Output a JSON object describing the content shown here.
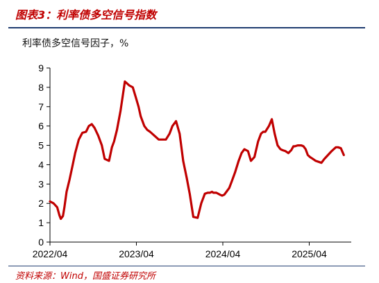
{
  "figure": {
    "label": "图表3：",
    "title": "利率债多空信号指数",
    "source": "资料来源：Wind，国盛证券研究所"
  },
  "colors": {
    "series": "#c00000",
    "rule": "#1f3b70"
  },
  "chart_data": {
    "type": "line",
    "title": "利率债多空信号因子，%",
    "xlabel": "",
    "ylabel": "",
    "ylim": [
      0,
      9
    ],
    "yticks": [
      "0",
      "1",
      "2",
      "3",
      "4",
      "5",
      "6",
      "7",
      "8",
      "9"
    ],
    "xticks": [
      "2022/04",
      "2023/04",
      "2024/04",
      "2025/04"
    ],
    "x_unit": "months since 2022/04",
    "grid": false,
    "legend": "none",
    "series": [
      {
        "name": "",
        "x": [
          0,
          0.5,
          1,
          1.3,
          1.5,
          1.8,
          2,
          2.3,
          2.7,
          3.1,
          3.5,
          4,
          4.5,
          5,
          5.4,
          5.8,
          6.2,
          6.7,
          7.2,
          7.6,
          8.2,
          8.6,
          8.9,
          9.3,
          9.8,
          10.4,
          10.7,
          11,
          11.5,
          11.9,
          12.3,
          12.6,
          13.1,
          13.5,
          13.9,
          14.5,
          15.1,
          15.5,
          16.1,
          16.6,
          17,
          17.5,
          18,
          18.5,
          19,
          19.4,
          19.9,
          20.5,
          21,
          21.5,
          21.9,
          22.2,
          22.5,
          22.7,
          23.1,
          23.6,
          23.9,
          24.2,
          24.5,
          24.9,
          25.3,
          25.7,
          26.2,
          26.6,
          27,
          27.5,
          27.9,
          28.4,
          28.9,
          29.3,
          29.6,
          29.9,
          30.4,
          30.8,
          31.2,
          31.6,
          32,
          32.3,
          32.7,
          33.1,
          33.5,
          33.8,
          34,
          34.4,
          34.9,
          35.2,
          35.5,
          35.8,
          36.1,
          36.5,
          36.9,
          37.3,
          37.7,
          38.1,
          38.6,
          39.1,
          39.4,
          39.7,
          40,
          40.4,
          40.8
        ],
        "y": [
          2.1,
          2.0,
          1.8,
          1.4,
          1.2,
          1.35,
          1.8,
          2.6,
          3.2,
          3.9,
          4.6,
          5.3,
          5.65,
          5.7,
          6.0,
          6.1,
          5.9,
          5.5,
          5.0,
          4.3,
          4.2,
          4.9,
          5.2,
          5.8,
          6.8,
          8.3,
          8.2,
          8.1,
          8.0,
          7.5,
          7.0,
          6.5,
          6.0,
          5.8,
          5.7,
          5.5,
          5.3,
          5.3,
          5.3,
          5.6,
          6.0,
          6.25,
          5.6,
          4.2,
          3.3,
          2.5,
          1.3,
          1.25,
          2.0,
          2.5,
          2.55,
          2.55,
          2.6,
          2.55,
          2.55,
          2.45,
          2.4,
          2.45,
          2.6,
          2.8,
          3.2,
          3.6,
          4.2,
          4.6,
          4.8,
          4.7,
          4.2,
          4.4,
          5.2,
          5.6,
          5.7,
          5.7,
          6.0,
          6.35,
          5.6,
          5.0,
          4.8,
          4.75,
          4.7,
          4.6,
          4.75,
          4.95,
          4.95,
          5.0,
          5.0,
          4.95,
          4.8,
          4.5,
          4.4,
          4.3,
          4.2,
          4.15,
          4.1,
          4.3,
          4.5,
          4.7,
          4.8,
          4.9,
          4.9,
          4.85,
          4.5
        ]
      }
    ]
  }
}
